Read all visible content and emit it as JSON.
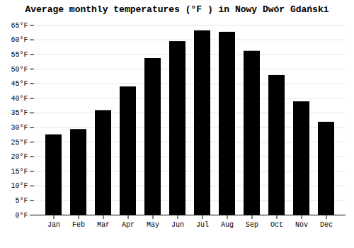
{
  "chart_data": {
    "type": "bar",
    "title": "Average monthly temperatures (°F ) in Nowy Dwór Gdański",
    "categories": [
      "Jan",
      "Feb",
      "Mar",
      "Apr",
      "May",
      "Jun",
      "Jul",
      "Aug",
      "Sep",
      "Oct",
      "Nov",
      "Dec"
    ],
    "values": [
      27.5,
      29.3,
      35.8,
      43.9,
      53.6,
      59.4,
      63.1,
      62.6,
      56.1,
      47.8,
      38.8,
      31.8
    ],
    "ylim": [
      0,
      65
    ],
    "yticks": [
      {
        "value": 0,
        "label": "0°F"
      },
      {
        "value": 5,
        "label": "5°F"
      },
      {
        "value": 10,
        "label": "10°F"
      },
      {
        "value": 15,
        "label": "15°F"
      },
      {
        "value": 20,
        "label": "20°F"
      },
      {
        "value": 25,
        "label": "25°F"
      },
      {
        "value": 30,
        "label": "30°F"
      },
      {
        "value": 35,
        "label": "35°F"
      },
      {
        "value": 40,
        "label": "40°F"
      },
      {
        "value": 45,
        "label": "45°F"
      },
      {
        "value": 50,
        "label": "50°F"
      },
      {
        "value": 55,
        "label": "55°F"
      },
      {
        "value": 60,
        "label": "60°F"
      },
      {
        "value": 65,
        "label": "65°F"
      }
    ],
    "grid": true
  }
}
